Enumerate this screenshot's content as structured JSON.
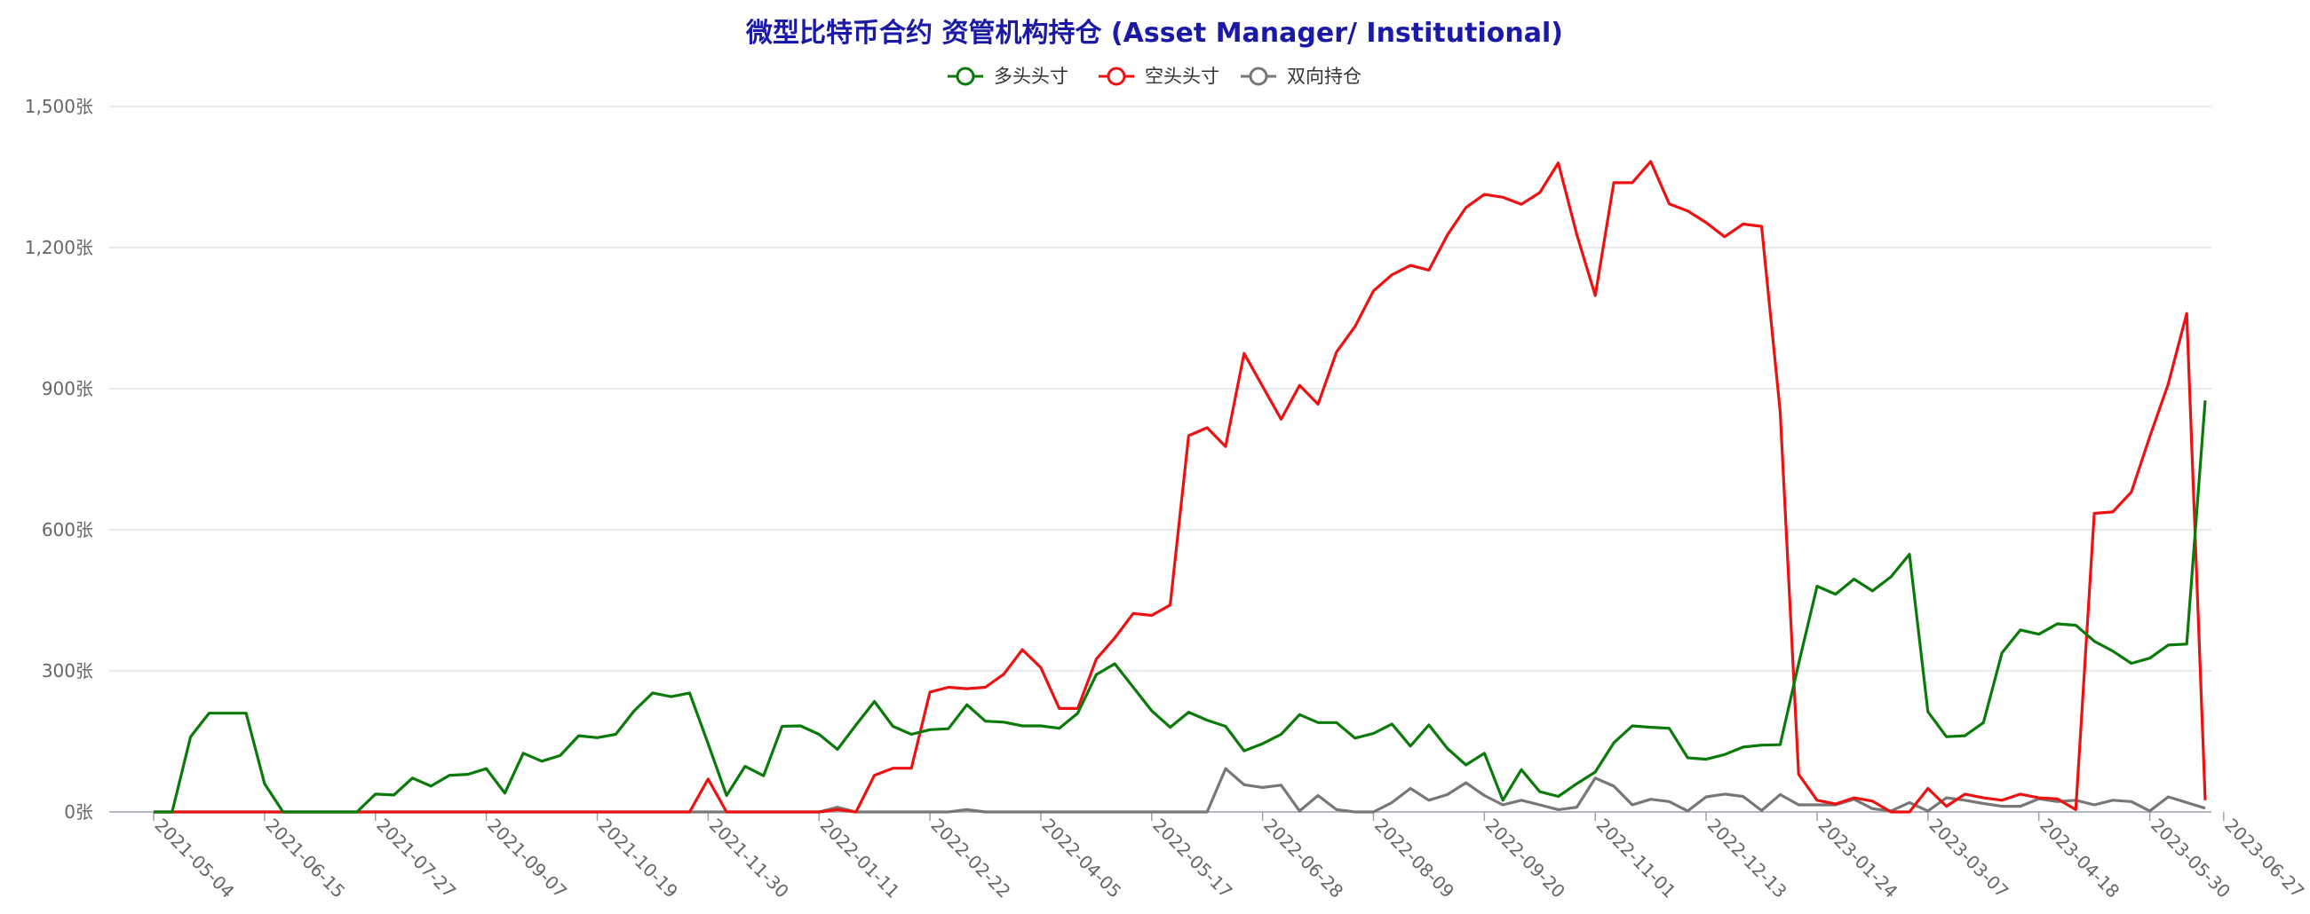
{
  "title": "微型比特币合约 资管机构持仓 (Asset Manager/ Institutional)",
  "legend": [
    {
      "name": "多头头寸",
      "color": "#0a7a0a"
    },
    {
      "name": "空头头寸",
      "color": "#ee1111"
    },
    {
      "name": "双向持仓",
      "color": "#777777"
    }
  ],
  "chart_data": {
    "type": "line",
    "title": "微型比特币合约 资管机构持仓 (Asset Manager/ Institutional)",
    "xlabel": "",
    "ylabel": "",
    "ylim": [
      0,
      1500
    ],
    "y_unit": "张",
    "y_ticks": [
      "0张",
      "300张",
      "600张",
      "900张",
      "1,200张",
      "1,500张"
    ],
    "y_tick_values": [
      0,
      300,
      600,
      900,
      1200,
      1500
    ],
    "x_tick_labels": [
      "2021-05-04",
      "2021-06-15",
      "2021-07-27",
      "2021-09-07",
      "2021-10-19",
      "2021-11-30",
      "2022-01-11",
      "2022-02-22",
      "2022-04-05",
      "2022-05-17",
      "2022-06-28",
      "2022-08-09",
      "2022-09-20",
      "2022-11-01",
      "2022-12-13",
      "2023-01-24",
      "2023-03-07",
      "2023-04-18",
      "2023-05-30",
      "2023-06-27"
    ],
    "x_tick_positions": [
      0,
      6,
      12,
      18,
      24,
      30,
      36,
      42,
      48,
      54,
      60,
      66,
      72,
      78,
      84,
      90,
      96,
      102,
      108,
      112
    ],
    "grid": true,
    "legend_position": "top-center",
    "series": [
      {
        "name": "多头头寸",
        "color": "#0a7a0a",
        "values": [
          0,
          0,
          160,
          210,
          210,
          210,
          60,
          0,
          0,
          0,
          0,
          0,
          38,
          36,
          72,
          55,
          78,
          80,
          92,
          40,
          125,
          108,
          120,
          162,
          158,
          165,
          215,
          253,
          245,
          253,
          145,
          35,
          97,
          77,
          182,
          183,
          165,
          133,
          185,
          235,
          182,
          165,
          175,
          177,
          228,
          193,
          191,
          183,
          183,
          178,
          210,
          292,
          315,
          265,
          215,
          180,
          212,
          195,
          182,
          130,
          145,
          165,
          207,
          190,
          190,
          157,
          167,
          187,
          140,
          185,
          135,
          100,
          125,
          25,
          90,
          43,
          33,
          60,
          85,
          147,
          183,
          180,
          178,
          115,
          112,
          122,
          138,
          142,
          143,
          315,
          480,
          463,
          495,
          470,
          500,
          548,
          213,
          160,
          162,
          190,
          338,
          387,
          378,
          400,
          397,
          363,
          342,
          316,
          327,
          355,
          357,
          875
        ]
      },
      {
        "name": "空头头寸",
        "color": "#ee1111",
        "values": [
          0,
          0,
          0,
          0,
          0,
          0,
          0,
          0,
          0,
          0,
          0,
          0,
          0,
          0,
          0,
          0,
          0,
          0,
          0,
          0,
          0,
          0,
          0,
          0,
          0,
          0,
          0,
          0,
          0,
          0,
          70,
          0,
          0,
          0,
          0,
          0,
          0,
          5,
          0,
          78,
          93,
          93,
          255,
          265,
          262,
          265,
          293,
          345,
          307,
          220,
          220,
          325,
          370,
          422,
          418,
          440,
          800,
          817,
          777,
          975,
          905,
          835,
          907,
          867,
          978,
          1032,
          1108,
          1142,
          1162,
          1152,
          1227,
          1285,
          1313,
          1307,
          1292,
          1317,
          1380,
          1228,
          1098,
          1338,
          1338,
          1383,
          1293,
          1278,
          1253,
          1223,
          1250,
          1245,
          852,
          80,
          25,
          17,
          30,
          23,
          0,
          0,
          50,
          12,
          38,
          30,
          25,
          38,
          30,
          28,
          5,
          635,
          638,
          680,
          798,
          910,
          1060,
          25
        ]
      },
      {
        "name": "双向持仓",
        "color": "#777777",
        "values": [
          0,
          0,
          0,
          0,
          0,
          0,
          0,
          0,
          0,
          0,
          0,
          0,
          0,
          0,
          0,
          0,
          0,
          0,
          0,
          0,
          0,
          0,
          0,
          0,
          0,
          0,
          0,
          0,
          0,
          0,
          0,
          0,
          0,
          0,
          0,
          0,
          0,
          10,
          0,
          0,
          0,
          0,
          0,
          0,
          5,
          0,
          0,
          0,
          0,
          0,
          0,
          0,
          0,
          0,
          0,
          0,
          0,
          0,
          92,
          58,
          52,
          57,
          2,
          35,
          5,
          0,
          0,
          20,
          50,
          25,
          37,
          62,
          35,
          15,
          25,
          15,
          5,
          10,
          72,
          55,
          15,
          27,
          22,
          2,
          32,
          38,
          33,
          3,
          37,
          15,
          15,
          15,
          27,
          7,
          2,
          20,
          2,
          30,
          25,
          18,
          12,
          12,
          28,
          22,
          25,
          15,
          25,
          22,
          2,
          32,
          20,
          8
        ]
      }
    ]
  }
}
